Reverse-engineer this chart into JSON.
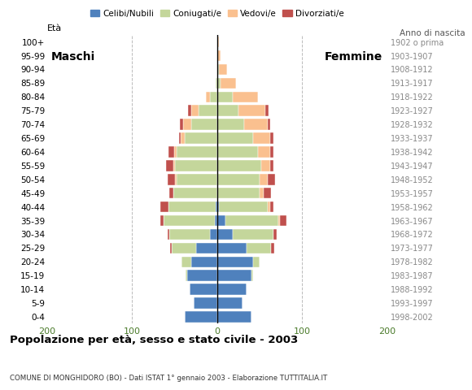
{
  "age_groups": [
    "0-4",
    "5-9",
    "10-14",
    "15-19",
    "20-24",
    "25-29",
    "30-34",
    "35-39",
    "40-44",
    "45-49",
    "50-54",
    "55-59",
    "60-64",
    "65-69",
    "70-74",
    "75-79",
    "80-84",
    "85-89",
    "90-94",
    "95-99",
    "100+"
  ],
  "birth_years": [
    "1998-2002",
    "1993-1997",
    "1988-1992",
    "1983-1987",
    "1978-1982",
    "1973-1977",
    "1968-1972",
    "1963-1967",
    "1958-1962",
    "1953-1957",
    "1948-1952",
    "1943-1947",
    "1938-1942",
    "1933-1937",
    "1928-1932",
    "1923-1927",
    "1918-1922",
    "1913-1917",
    "1908-1912",
    "1903-1907",
    "1902 o prima"
  ],
  "male_celibi": [
    38,
    28,
    32,
    35,
    30,
    25,
    8,
    3,
    2,
    0,
    0,
    0,
    0,
    0,
    0,
    0,
    0,
    0,
    0,
    0,
    0
  ],
  "male_coniugati": [
    0,
    0,
    0,
    2,
    12,
    28,
    48,
    60,
    55,
    52,
    48,
    50,
    48,
    38,
    30,
    22,
    8,
    2,
    0,
    0,
    0
  ],
  "male_vedovi": [
    0,
    0,
    0,
    0,
    0,
    0,
    0,
    0,
    0,
    0,
    2,
    2,
    3,
    5,
    10,
    8,
    5,
    0,
    0,
    0,
    0
  ],
  "male_divorziati": [
    0,
    0,
    0,
    0,
    0,
    2,
    2,
    4,
    10,
    4,
    8,
    8,
    6,
    2,
    4,
    4,
    0,
    0,
    0,
    0,
    0
  ],
  "female_celibi": [
    40,
    30,
    35,
    40,
    42,
    35,
    18,
    10,
    2,
    0,
    0,
    0,
    0,
    0,
    0,
    0,
    0,
    0,
    0,
    0,
    0
  ],
  "female_coniugati": [
    0,
    0,
    0,
    2,
    8,
    28,
    48,
    62,
    58,
    50,
    50,
    52,
    48,
    42,
    32,
    25,
    18,
    4,
    2,
    0,
    0
  ],
  "female_vedovi": [
    0,
    0,
    0,
    0,
    0,
    0,
    0,
    2,
    2,
    5,
    10,
    10,
    14,
    20,
    28,
    32,
    30,
    18,
    10,
    4,
    2
  ],
  "female_divorziati": [
    0,
    0,
    0,
    0,
    0,
    4,
    4,
    8,
    4,
    8,
    8,
    4,
    4,
    4,
    2,
    4,
    0,
    0,
    0,
    0,
    0
  ],
  "color_celibi": "#4f81bd",
  "color_coniugati": "#c4d69b",
  "color_vedovi": "#fac08f",
  "color_divorziati": "#c0504d",
  "title": "Popolazione per età, sesso e stato civile - 2003",
  "subtitle": "COMUNE DI MONGHIDORO (BO) - Dati ISTAT 1° gennaio 2003 - Elaborazione TUTTITALIA.IT",
  "label_eta": "Età",
  "label_anno": "Anno di nascita",
  "label_maschi": "Maschi",
  "label_femmine": "Femmine",
  "legend_labels": [
    "Celibi/Nubili",
    "Coniugati/e",
    "Vedovi/e",
    "Divorziati/e"
  ],
  "xlim": 200,
  "background_color": "#ffffff",
  "bar_height": 0.8
}
